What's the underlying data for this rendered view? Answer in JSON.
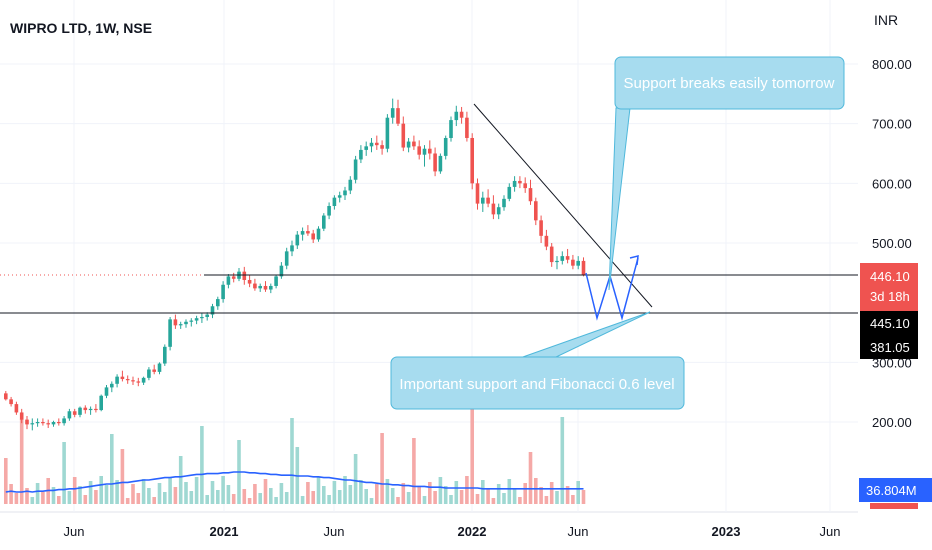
{
  "header": {
    "symbol": "WIPRO LTD, 1W, NSE"
  },
  "chart_data": {
    "type": "candlestick",
    "currency": "INR",
    "y_axis_ticks": [
      200,
      300,
      500,
      600,
      700,
      800
    ],
    "y_tick_labels": [
      "200.00",
      "300.00",
      "500.00",
      "600.00",
      "700.00",
      "800.00"
    ],
    "x_axis_labels": [
      {
        "label": "Jun",
        "bold": false
      },
      {
        "label": "2021",
        "bold": true
      },
      {
        "label": "Jun",
        "bold": false
      },
      {
        "label": "2022",
        "bold": true
      },
      {
        "label": "Jun",
        "bold": false
      },
      {
        "label": "2023",
        "bold": true
      },
      {
        "label": "Jun",
        "bold": false
      }
    ],
    "price_tags": [
      {
        "value": "446.10",
        "sub": "3d 18h",
        "color": "#ef5350"
      },
      {
        "value": "445.10",
        "sub": "381.05",
        "color": "#000000"
      }
    ],
    "volume_tag": {
      "value": "36.804M",
      "color": "#2962ff"
    },
    "annotations": [
      {
        "text": "Support breaks easily tomorrow"
      },
      {
        "text": "Important support and Fibonacci 0.6 level"
      }
    ],
    "ohlc": [
      [
        248,
        252,
        236,
        238
      ],
      [
        238,
        242,
        226,
        230
      ],
      [
        230,
        234,
        212,
        216
      ],
      [
        216,
        222,
        198,
        204
      ],
      [
        204,
        210,
        188,
        196
      ],
      [
        196,
        206,
        186,
        198
      ],
      [
        198,
        206,
        192,
        200
      ],
      [
        200,
        206,
        194,
        198
      ],
      [
        198,
        204,
        190,
        196
      ],
      [
        196,
        202,
        192,
        200
      ],
      [
        200,
        206,
        194,
        198
      ],
      [
        198,
        210,
        194,
        206
      ],
      [
        206,
        222,
        202,
        218
      ],
      [
        218,
        222,
        208,
        212
      ],
      [
        212,
        226,
        208,
        224
      ],
      [
        224,
        228,
        214,
        220
      ],
      [
        220,
        226,
        212,
        222
      ],
      [
        222,
        230,
        216,
        220
      ],
      [
        220,
        246,
        218,
        244
      ],
      [
        244,
        262,
        240,
        258
      ],
      [
        258,
        268,
        250,
        264
      ],
      [
        264,
        280,
        258,
        276
      ],
      [
        276,
        286,
        268,
        272
      ],
      [
        272,
        278,
        264,
        270
      ],
      [
        270,
        276,
        262,
        268
      ],
      [
        268,
        274,
        260,
        266
      ],
      [
        266,
        276,
        262,
        274
      ],
      [
        274,
        292,
        270,
        288
      ],
      [
        288,
        296,
        280,
        284
      ],
      [
        284,
        300,
        280,
        298
      ],
      [
        298,
        330,
        294,
        326
      ],
      [
        326,
        376,
        320,
        372
      ],
      [
        372,
        380,
        356,
        362
      ],
      [
        362,
        368,
        356,
        364
      ],
      [
        364,
        372,
        358,
        368
      ],
      [
        368,
        374,
        360,
        370
      ],
      [
        370,
        378,
        364,
        374
      ],
      [
        374,
        382,
        366,
        376
      ],
      [
        376,
        384,
        370,
        380
      ],
      [
        380,
        398,
        374,
        394
      ],
      [
        394,
        410,
        388,
        406
      ],
      [
        406,
        436,
        400,
        430
      ],
      [
        430,
        448,
        424,
        444
      ],
      [
        444,
        450,
        434,
        440
      ],
      [
        440,
        458,
        436,
        452
      ],
      [
        452,
        460,
        430,
        438
      ],
      [
        438,
        446,
        426,
        432
      ],
      [
        432,
        440,
        420,
        424
      ],
      [
        424,
        432,
        418,
        428
      ],
      [
        428,
        436,
        418,
        422
      ],
      [
        422,
        432,
        416,
        428
      ],
      [
        428,
        446,
        424,
        444
      ],
      [
        444,
        468,
        440,
        462
      ],
      [
        462,
        492,
        456,
        486
      ],
      [
        486,
        504,
        478,
        496
      ],
      [
        496,
        520,
        490,
        514
      ],
      [
        514,
        526,
        504,
        520
      ],
      [
        520,
        530,
        512,
        516
      ],
      [
        516,
        522,
        500,
        506
      ],
      [
        506,
        528,
        502,
        524
      ],
      [
        524,
        550,
        520,
        546
      ],
      [
        546,
        568,
        540,
        562
      ],
      [
        562,
        580,
        556,
        576
      ],
      [
        576,
        586,
        568,
        580
      ],
      [
        580,
        594,
        572,
        588
      ],
      [
        588,
        612,
        582,
        606
      ],
      [
        606,
        646,
        600,
        640
      ],
      [
        640,
        664,
        634,
        656
      ],
      [
        656,
        670,
        646,
        662
      ],
      [
        662,
        676,
        652,
        668
      ],
      [
        668,
        680,
        656,
        664
      ],
      [
        664,
        672,
        648,
        658
      ],
      [
        658,
        716,
        652,
        710
      ],
      [
        710,
        742,
        700,
        726
      ],
      [
        726,
        740,
        696,
        700
      ],
      [
        700,
        712,
        654,
        660
      ],
      [
        660,
        676,
        652,
        670
      ],
      [
        670,
        680,
        656,
        662
      ],
      [
        662,
        672,
        640,
        648
      ],
      [
        648,
        664,
        628,
        658
      ],
      [
        658,
        672,
        640,
        650
      ],
      [
        650,
        660,
        612,
        620
      ],
      [
        620,
        650,
        616,
        646
      ],
      [
        646,
        680,
        640,
        676
      ],
      [
        676,
        712,
        670,
        706
      ],
      [
        706,
        730,
        696,
        720
      ],
      [
        720,
        728,
        700,
        710
      ],
      [
        710,
        720,
        670,
        676
      ],
      [
        676,
        684,
        590,
        600
      ],
      [
        600,
        608,
        556,
        566
      ],
      [
        566,
        586,
        552,
        576
      ],
      [
        576,
        590,
        560,
        566
      ],
      [
        566,
        580,
        540,
        548
      ],
      [
        548,
        566,
        540,
        560
      ],
      [
        560,
        580,
        554,
        574
      ],
      [
        574,
        600,
        570,
        594
      ],
      [
        594,
        612,
        586,
        604
      ],
      [
        604,
        612,
        592,
        600
      ],
      [
        600,
        610,
        584,
        592
      ],
      [
        592,
        606,
        564,
        570
      ],
      [
        570,
        576,
        530,
        538
      ],
      [
        538,
        546,
        500,
        512
      ],
      [
        512,
        522,
        488,
        494
      ],
      [
        494,
        500,
        460,
        468
      ],
      [
        468,
        478,
        456,
        470
      ],
      [
        470,
        486,
        464,
        478
      ],
      [
        478,
        490,
        466,
        472
      ],
      [
        472,
        480,
        456,
        462
      ],
      [
        462,
        478,
        456,
        470
      ],
      [
        470,
        476,
        444,
        446.1
      ]
    ],
    "volume_average": [
      15,
      16,
      15,
      15,
      16,
      15,
      16,
      16,
      17,
      17,
      18,
      18,
      19,
      19,
      20,
      21,
      22,
      23,
      24,
      25,
      25,
      26,
      27,
      27,
      28,
      29,
      30,
      30,
      31,
      32,
      33,
      33,
      34,
      34,
      35,
      36,
      37,
      37,
      38,
      38,
      38,
      39,
      39,
      40,
      40,
      40,
      39,
      39,
      38,
      38,
      37,
      37,
      36,
      36,
      36,
      35,
      35,
      35,
      34,
      34,
      33,
      33,
      32,
      31,
      30,
      30,
      29,
      28,
      27,
      27,
      26,
      25,
      25,
      24,
      24,
      23,
      23,
      22,
      22,
      22,
      21,
      21,
      21,
      20,
      20,
      20,
      20,
      20,
      20,
      20,
      19,
      19,
      19,
      19,
      19,
      19,
      19,
      19,
      19,
      19,
      19,
      19,
      19,
      19,
      19,
      19,
      19,
      19,
      19,
      19
    ]
  }
}
